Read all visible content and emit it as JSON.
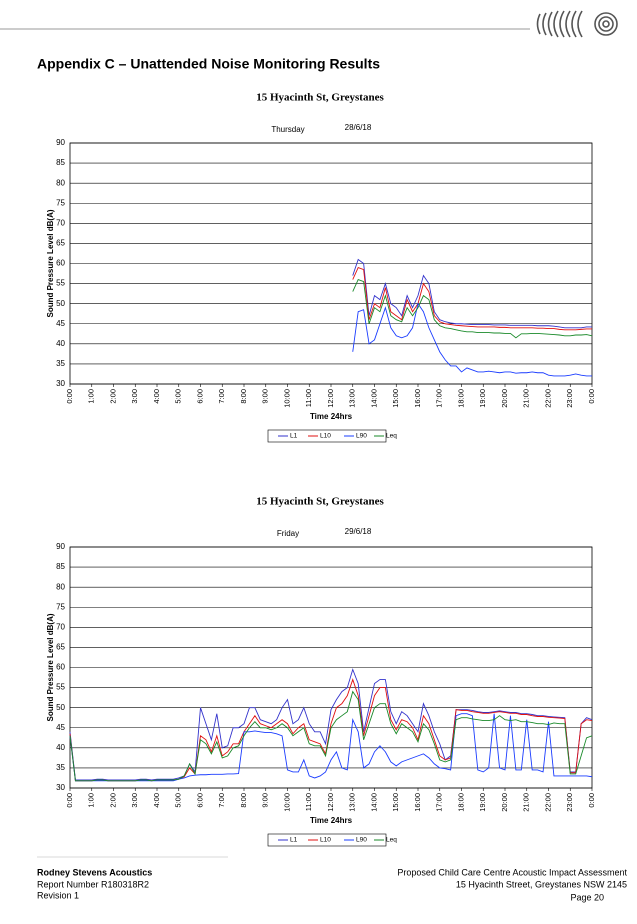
{
  "title": "Appendix C – Unattended Noise Monitoring Results",
  "footer": {
    "left": [
      "Rodney Stevens Acoustics",
      "Report Number R180318R2",
      "Revision 1"
    ],
    "right": [
      "Proposed Child Care Centre Acoustic Impact Assessment",
      "15 Hyacinth Street, Greystanes NSW 2145",
      "Page 20"
    ]
  },
  "chart_data": [
    {
      "type": "line",
      "title": "15 Hyacinth St, Greystanes",
      "day": "Thursday",
      "date": "28/6/18",
      "ylabel": "Sound Pressure Level dB(A)",
      "xlabel": "Time 24hrs",
      "xlim": [
        0,
        24
      ],
      "ylim": [
        30,
        90
      ],
      "yticks": [
        30,
        35,
        40,
        45,
        50,
        55,
        60,
        65,
        70,
        75,
        80,
        85,
        90
      ],
      "xticks": [
        {
          "value": 0,
          "label": "0:00"
        },
        {
          "value": 1,
          "label": "1:00"
        },
        {
          "value": 2,
          "label": "2:00"
        },
        {
          "value": 3,
          "label": "3:00"
        },
        {
          "value": 4,
          "label": "4:00"
        },
        {
          "value": 5,
          "label": "5:00"
        },
        {
          "value": 6,
          "label": "6:00"
        },
        {
          "value": 7,
          "label": "7:00"
        },
        {
          "value": 8,
          "label": "8:00"
        },
        {
          "value": 9,
          "label": "9:00"
        },
        {
          "value": 10,
          "label": "10:00"
        },
        {
          "value": 11,
          "label": "11:00"
        },
        {
          "value": 12,
          "label": "12:00"
        },
        {
          "value": 13,
          "label": "13:00"
        },
        {
          "value": 14,
          "label": "14:00"
        },
        {
          "value": 15,
          "label": "15:00"
        },
        {
          "value": 16,
          "label": "16:00"
        },
        {
          "value": 17,
          "label": "17:00"
        },
        {
          "value": 18,
          "label": "18:00"
        },
        {
          "value": 19,
          "label": "19:00"
        },
        {
          "value": 20,
          "label": "20:00"
        },
        {
          "value": 21,
          "label": "21:00"
        },
        {
          "value": 22,
          "label": "22:00"
        },
        {
          "value": 23,
          "label": "23:00"
        },
        {
          "value": 24,
          "label": "0:00"
        }
      ],
      "grid": true,
      "x": [
        13,
        13.25,
        13.5,
        13.75,
        14,
        14.25,
        14.5,
        14.75,
        15,
        15.25,
        15.5,
        15.75,
        16,
        16.25,
        16.5,
        16.75,
        17,
        17.25,
        17.5,
        17.75,
        18,
        18.25,
        18.5,
        18.75,
        19,
        19.25,
        19.5,
        19.75,
        20,
        20.25,
        20.5,
        20.75,
        21,
        21.25,
        21.5,
        21.75,
        22,
        22.25,
        22.5,
        22.75,
        23,
        23.25,
        23.5,
        23.75,
        24
      ],
      "series": [
        {
          "name": "L1",
          "color": "#3333cc",
          "values": [
            57,
            61,
            60,
            47,
            52,
            51,
            55,
            50,
            49,
            47,
            52,
            49,
            52,
            57,
            55,
            48,
            46,
            45.5,
            45.2,
            45,
            45,
            44.9,
            44.8,
            44.8,
            44.8,
            44.8,
            44.7,
            44.7,
            44.7,
            44.6,
            44.6,
            44.6,
            44.6,
            44.6,
            44.5,
            44.5,
            44.5,
            44.4,
            44.2,
            44,
            44,
            44,
            44,
            44.2,
            44.2
          ]
        },
        {
          "name": "L10",
          "color": "#e01010",
          "values": [
            56,
            59,
            58.5,
            46,
            50,
            49,
            54,
            48,
            47,
            46,
            51,
            48,
            50,
            55,
            53,
            47,
            45.5,
            45,
            44.8,
            44.6,
            44.5,
            44.4,
            44.3,
            44.2,
            44.2,
            44.2,
            44.2,
            44.1,
            44.1,
            44,
            44,
            44,
            44,
            44,
            43.9,
            43.9,
            43.8,
            43.8,
            43.6,
            43.5,
            43.5,
            43.5,
            43.6,
            43.7,
            43.7
          ]
        },
        {
          "name": "L90",
          "color": "#1a3cff",
          "values": [
            38,
            48,
            48.5,
            40,
            41,
            45,
            49,
            44,
            42,
            41.5,
            42,
            44,
            50,
            48,
            44,
            41,
            38,
            36,
            34.5,
            34.5,
            33,
            34,
            33.5,
            33,
            33,
            33.2,
            33,
            32.8,
            33,
            33,
            32.7,
            32.8,
            32.8,
            33,
            32.8,
            32.8,
            32.2,
            32,
            32,
            32,
            32.2,
            32.5,
            32.2,
            32,
            32
          ]
        },
        {
          "name": "Leq",
          "color": "#1a8a2a",
          "values": [
            53,
            56,
            55.5,
            45,
            49,
            48,
            52,
            47,
            46,
            45.5,
            49,
            47,
            49,
            52,
            51,
            46,
            44.5,
            44,
            43.8,
            43.5,
            43.2,
            43,
            43,
            42.8,
            42.8,
            42.8,
            42.7,
            42.7,
            42.6,
            42.6,
            41.5,
            42.5,
            42.5,
            42.6,
            42.6,
            42.5,
            42.4,
            42.3,
            42.2,
            42,
            42,
            42.2,
            42.2,
            42.3,
            42
          ]
        }
      ]
    },
    {
      "type": "line",
      "title": "15 Hyacinth St, Greystanes",
      "day": "Friday",
      "date": "29/6/18",
      "ylabel": "Sound Pressure Level dB(A)",
      "xlabel": "Time 24hrs",
      "xlim": [
        0,
        24
      ],
      "ylim": [
        30,
        90
      ],
      "yticks": [
        30,
        35,
        40,
        45,
        50,
        55,
        60,
        65,
        70,
        75,
        80,
        85,
        90
      ],
      "xticks": [
        {
          "value": 0,
          "label": "0:00"
        },
        {
          "value": 1,
          "label": "1:00"
        },
        {
          "value": 2,
          "label": "2:00"
        },
        {
          "value": 3,
          "label": "3:00"
        },
        {
          "value": 4,
          "label": "4:00"
        },
        {
          "value": 5,
          "label": "5:00"
        },
        {
          "value": 6,
          "label": "6:00"
        },
        {
          "value": 7,
          "label": "7:00"
        },
        {
          "value": 8,
          "label": "8:00"
        },
        {
          "value": 9,
          "label": "9:00"
        },
        {
          "value": 10,
          "label": "10:00"
        },
        {
          "value": 11,
          "label": "11:00"
        },
        {
          "value": 12,
          "label": "12:00"
        },
        {
          "value": 13,
          "label": "13:00"
        },
        {
          "value": 14,
          "label": "14:00"
        },
        {
          "value": 15,
          "label": "15:00"
        },
        {
          "value": 16,
          "label": "16:00"
        },
        {
          "value": 17,
          "label": "17:00"
        },
        {
          "value": 18,
          "label": "18:00"
        },
        {
          "value": 19,
          "label": "19:00"
        },
        {
          "value": 20,
          "label": "20:00"
        },
        {
          "value": 21,
          "label": "21:00"
        },
        {
          "value": 22,
          "label": "22:00"
        },
        {
          "value": 23,
          "label": "23:00"
        },
        {
          "value": 24,
          "label": "0:00"
        }
      ],
      "grid": true,
      "x": [
        0,
        0.25,
        0.5,
        0.75,
        1,
        1.25,
        1.5,
        1.75,
        2,
        2.25,
        2.5,
        2.75,
        3,
        3.25,
        3.5,
        3.75,
        4,
        4.25,
        4.5,
        4.75,
        5,
        5.25,
        5.5,
        5.75,
        6,
        6.25,
        6.5,
        6.75,
        7,
        7.25,
        7.5,
        7.75,
        8,
        8.25,
        8.5,
        8.75,
        9,
        9.25,
        9.5,
        9.75,
        10,
        10.25,
        10.5,
        10.75,
        11,
        11.25,
        11.5,
        11.75,
        12,
        12.25,
        12.5,
        12.75,
        13,
        13.25,
        13.5,
        13.75,
        14,
        14.25,
        14.5,
        14.75,
        15,
        15.25,
        15.5,
        15.75,
        16,
        16.25,
        16.5,
        16.75,
        17,
        17.25,
        17.5,
        17.75,
        18,
        18.25,
        18.5,
        18.75,
        19,
        19.25,
        19.5,
        19.75,
        20,
        20.25,
        20.5,
        20.75,
        21,
        21.25,
        21.5,
        21.75,
        22,
        22.25,
        22.5,
        22.75,
        23,
        23.25,
        23.5,
        23.75,
        24
      ],
      "series": [
        {
          "name": "L1",
          "color": "#3333cc",
          "values": [
            44,
            32,
            32,
            32,
            32,
            32.2,
            32.2,
            32,
            32,
            32,
            32,
            32,
            32,
            32.2,
            32.2,
            32,
            32.2,
            32.2,
            32.2,
            32.2,
            32.5,
            33,
            36,
            34,
            50,
            46,
            42,
            48.5,
            40,
            40.5,
            45,
            45,
            46,
            50,
            50,
            47,
            46.5,
            46,
            47,
            50,
            52,
            46,
            47,
            50,
            46,
            44,
            44,
            41,
            49.5,
            52,
            54,
            55,
            59.5,
            56,
            44,
            50,
            56,
            57,
            57,
            49,
            46,
            49,
            48,
            46,
            44,
            51,
            48,
            44,
            41,
            37,
            38,
            49.5,
            49.5,
            49.5,
            49.3,
            49,
            48.8,
            48.8,
            49,
            49.2,
            49,
            48.8,
            48.8,
            48.5,
            48.5,
            48.3,
            48,
            48,
            47.8,
            47.7,
            47.6,
            47.5,
            34,
            34,
            46,
            47.5,
            47
          ]
        },
        {
          "name": "L10",
          "color": "#e01010",
          "values": [
            43.5,
            31.8,
            31.8,
            31.8,
            31.8,
            32,
            32,
            31.8,
            31.8,
            31.8,
            31.8,
            31.8,
            31.8,
            32,
            32,
            31.8,
            32,
            32,
            32,
            32,
            32.2,
            32.8,
            35,
            33.5,
            43,
            42,
            39,
            43,
            38,
            39,
            41,
            41,
            44,
            46,
            48,
            46,
            45.5,
            45,
            46,
            47,
            46,
            43.5,
            45,
            46,
            42,
            41.5,
            41,
            38.5,
            46,
            50,
            51,
            53,
            57,
            53,
            43,
            48,
            53,
            55,
            55,
            47,
            44.5,
            47,
            46.5,
            45,
            42,
            48,
            46,
            42,
            38,
            37,
            37.5,
            49.5,
            49.3,
            49.3,
            49,
            48.8,
            48.6,
            48.6,
            48.8,
            49,
            48.8,
            48.6,
            48.6,
            48.3,
            48.3,
            48,
            47.8,
            47.8,
            47.6,
            47.5,
            47.4,
            47.3,
            33.8,
            33.8,
            46,
            47,
            46.8
          ]
        },
        {
          "name": "L90",
          "color": "#1a3cff",
          "values": [
            43,
            31.8,
            31.8,
            31.8,
            31.8,
            31.8,
            31.8,
            31.8,
            31.8,
            31.8,
            31.8,
            31.8,
            31.8,
            31.8,
            31.8,
            31.8,
            31.8,
            31.8,
            31.8,
            31.8,
            32.2,
            32.5,
            33,
            33.2,
            33.3,
            33.3,
            33.4,
            33.4,
            33.4,
            33.5,
            33.5,
            33.6,
            44,
            44,
            44.2,
            44,
            43.8,
            43.8,
            43.5,
            43,
            34.5,
            34,
            34,
            37,
            33,
            32.5,
            33,
            34,
            37,
            39,
            35,
            34.5,
            47,
            44,
            35,
            36,
            39,
            40.5,
            39,
            36.5,
            35.5,
            36.5,
            37,
            37.5,
            38,
            38.5,
            37.5,
            36,
            35,
            34.8,
            34.5,
            48,
            48.5,
            48.5,
            48,
            34.5,
            34,
            35,
            48.5,
            35,
            34.5,
            48,
            34.5,
            34.5,
            47,
            34.5,
            34.5,
            34,
            46.5,
            33,
            33,
            33,
            33,
            33,
            33,
            33,
            32.8
          ]
        },
        {
          "name": "Leq",
          "color": "#1a8a2a",
          "values": [
            43,
            31.8,
            31.8,
            31.8,
            31.8,
            32,
            32,
            31.8,
            31.8,
            31.8,
            31.8,
            31.8,
            31.8,
            32,
            32,
            31.8,
            32,
            32,
            32,
            32,
            32.2,
            33,
            36,
            33.5,
            42,
            41,
            38.5,
            41.5,
            37.5,
            38,
            40,
            40.5,
            43,
            45,
            46.5,
            45,
            45,
            44.5,
            45,
            46,
            45,
            43,
            44,
            45,
            41,
            40.5,
            40.5,
            38,
            45,
            47,
            48,
            49,
            54,
            52,
            42,
            46,
            50,
            51,
            51,
            46,
            43.5,
            46,
            45,
            44,
            41.5,
            46,
            44.5,
            41,
            37,
            36.5,
            37,
            47,
            47.5,
            47.5,
            47.2,
            47,
            46.8,
            46.8,
            47,
            48,
            47,
            46.8,
            47,
            46.5,
            46.5,
            46.3,
            46,
            46,
            45.8,
            46.2,
            46,
            46,
            33.5,
            33.5,
            38,
            42.5,
            43
          ]
        }
      ]
    }
  ]
}
